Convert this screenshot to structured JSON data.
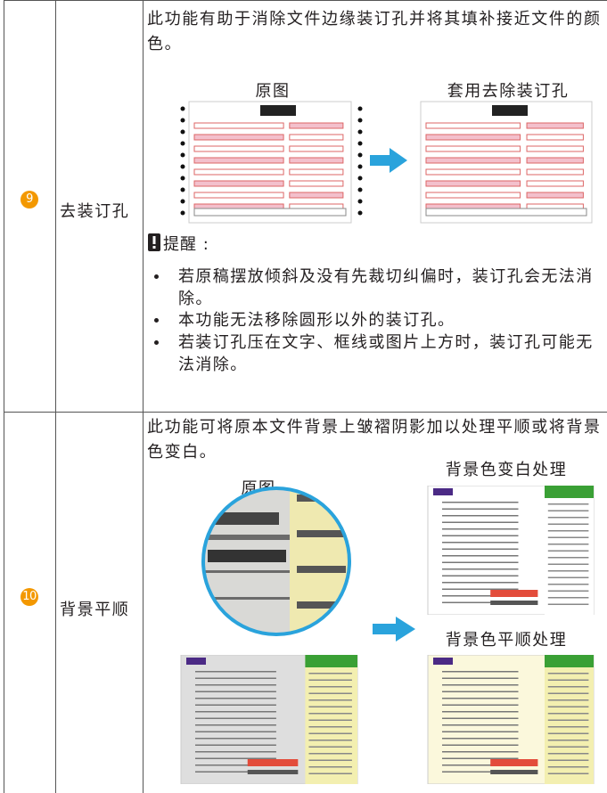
{
  "rows": [
    {
      "number": "9",
      "name": "去装订孔",
      "description": "此功能有助于消除文件边缘装订孔并将其填补接近文件的颜色。",
      "captions": [
        "原图",
        "套用去除装订孔"
      ],
      "note": {
        "title": "提醒 :",
        "items": [
          "若原稿摆放倾斜及没有先裁切纠偏时，装订孔会无法消除。",
          "本功能无法移除圆形以外的装订孔。",
          "若装订孔压在文字、框线或图片上方时，装订孔可能无法消除。"
        ]
      }
    },
    {
      "number": "10",
      "name": "背景平顺",
      "description": "此功能可将原本文件背景上皱褶阴影加以处理平顺或将背景色变白。",
      "captions": [
        "原图",
        "背景色变白处理",
        "背景色平顺处理"
      ]
    }
  ]
}
